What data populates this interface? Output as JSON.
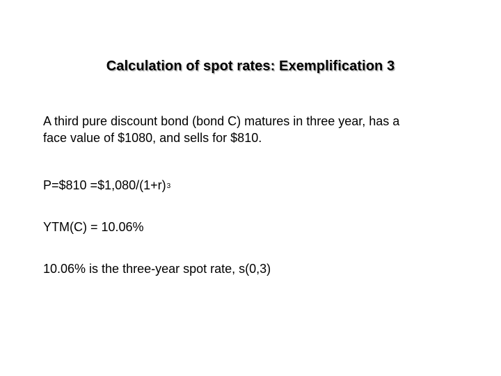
{
  "slide": {
    "title": "Calculation of spot rates: Exemplification 3",
    "paragraph1": {
      "line1": "A third pure discount bond (bond C) matures in three year, has a",
      "line2": "face value of $1080, and sells for $810."
    },
    "formula": {
      "base": "P=$810 =$1,080/(1+r)",
      "exponent": "3"
    },
    "ytm": "YTM(C) = 10.06%",
    "conclusion": "10.06% is the three-year spot rate, s(0,3)"
  }
}
